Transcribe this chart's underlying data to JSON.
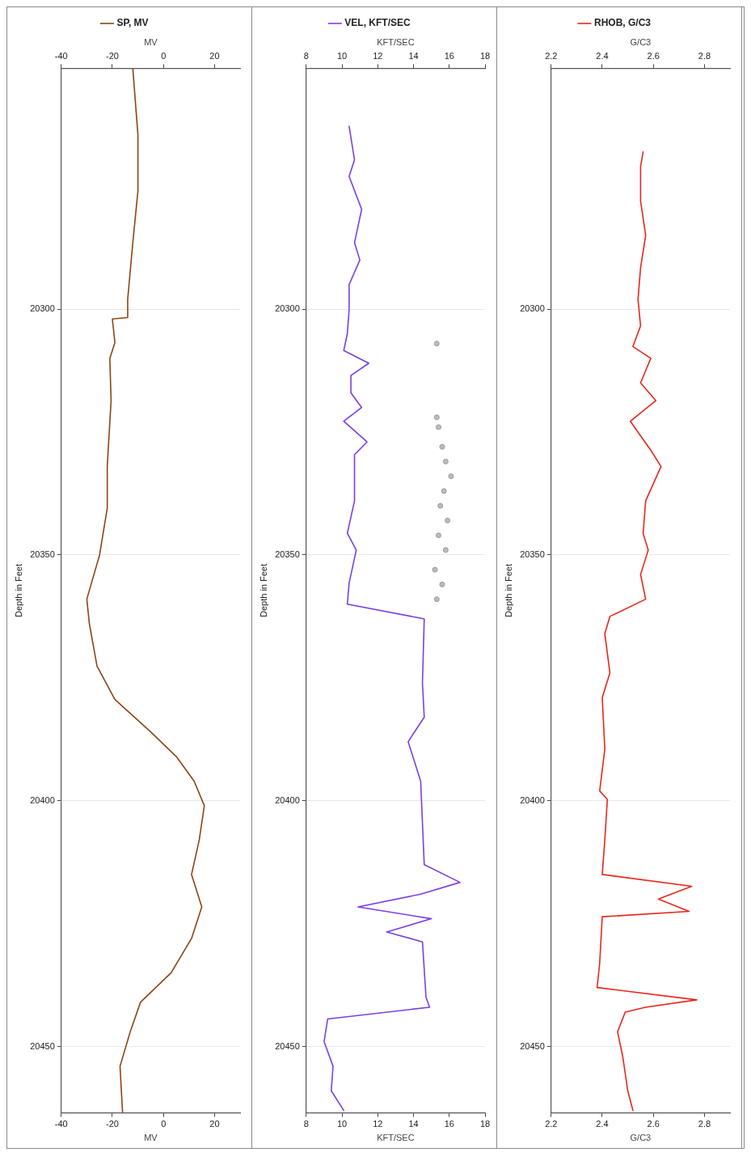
{
  "chart_data": [
    {
      "type": "line",
      "xlabel": "MV",
      "x2label": "MV",
      "ylabel": "Depth in Feet",
      "xlim": [
        -40,
        30
      ],
      "xticks": [
        -40,
        -20,
        0,
        20
      ],
      "x2lim": [
        -40,
        30
      ],
      "x2ticks": [
        -40,
        -20,
        0,
        20
      ],
      "ylim": [
        20463.5,
        20251
      ],
      "yticks": [
        20300,
        20350,
        20400,
        20450
      ],
      "grid": "y",
      "legend": "top",
      "marker": "none",
      "series": [
        {
          "name": "SP, MV",
          "color": "#8b4513",
          "x": [
            -12,
            -10,
            -10,
            -12,
            -14,
            -14,
            -20,
            -19,
            -21,
            -20.5,
            -22,
            -22,
            -25,
            -30,
            -29,
            -26,
            -19,
            -5,
            5,
            12,
            16,
            14,
            11,
            15,
            11,
            3,
            -9,
            -13,
            -17,
            -16
          ],
          "values": [
            20251,
            20264.5,
            20276,
            20286.5,
            20298,
            20301.7,
            20302,
            20306.8,
            20310,
            20318.6,
            20332,
            20340.5,
            20350,
            20359,
            20364,
            20372.6,
            20379.4,
            20386,
            20391,
            20396,
            20401,
            20408,
            20415,
            20421.6,
            20428,
            20435,
            20441,
            20447,
            20454,
            20463.5
          ]
        }
      ]
    },
    {
      "type": "line",
      "xlabel": "KFT/SEC",
      "x2label": "KFT/SEC",
      "ylabel": "Depth in Feet",
      "xlim": [
        8,
        18
      ],
      "xticks": [
        8,
        10,
        12,
        14,
        16,
        18
      ],
      "x2lim": [
        8,
        18
      ],
      "x2ticks": [
        8,
        10,
        12,
        14,
        16,
        18
      ],
      "ylim": [
        20463.5,
        20251
      ],
      "yticks": [
        20300,
        20350,
        20400,
        20450
      ],
      "grid": "y",
      "legend": "top",
      "marker": "none",
      "series": [
        {
          "name": "VEL, KFT/SEC",
          "color": "#7b3fe4",
          "x": [
            10.4,
            10.7,
            10.4,
            11.1,
            10.7,
            11.0,
            10.4,
            10.4,
            10.3,
            10.1,
            11.5,
            10.5,
            10.5,
            11.1,
            10.1,
            11.4,
            10.7,
            10.7,
            10.3,
            10.8,
            10.4,
            10.3,
            14.6,
            14.5,
            14.6,
            13.7,
            14.4,
            14.6,
            16.6,
            14.4,
            10.9,
            15.0,
            12.5,
            14.5,
            14.7,
            14.9,
            9.2,
            9.0,
            9.5,
            9.4,
            10.1
          ],
          "values": [
            20262.8,
            20269.6,
            20273,
            20279.7,
            20286.5,
            20290,
            20295,
            20300,
            20305,
            20308.4,
            20311,
            20313.5,
            20317,
            20320,
            20322.8,
            20327,
            20329.6,
            20339,
            20345.6,
            20349,
            20355.7,
            20360,
            20363,
            20376,
            20383,
            20388,
            20396,
            20413,
            20416.6,
            20419,
            20421.6,
            20424,
            20426.7,
            20428.7,
            20440,
            20442,
            20444.4,
            20449,
            20454,
            20459,
            20463
          ]
        },
        {
          "type": "scatter",
          "marker": "circle",
          "color": "#9a9a9a",
          "x": [
            15.3,
            15.3,
            15.4,
            15.6,
            15.8,
            16.1,
            15.7,
            15.5,
            15.9,
            15.4,
            15.8,
            15.2,
            15.6,
            15.3
          ],
          "values": [
            20307,
            20322,
            20324,
            20328,
            20331,
            20334,
            20337,
            20340,
            20343,
            20346,
            20349,
            20353,
            20356,
            20359
          ]
        }
      ]
    },
    {
      "type": "line",
      "xlabel": "G/C3",
      "x2label": "G/C3",
      "ylabel": "Depth in Feet",
      "xlim": [
        2.2,
        2.9
      ],
      "xticks": [
        2.2,
        2.4,
        2.6,
        2.8
      ],
      "x2lim": [
        2.2,
        2.9
      ],
      "x2ticks": [
        2.2,
        2.4,
        2.6,
        2.8
      ],
      "ylim": [
        20463.5,
        20251
      ],
      "yticks": [
        20300,
        20350,
        20400,
        20450
      ],
      "grid": "y",
      "legend": "top",
      "marker": "none",
      "series": [
        {
          "name": "RHOB, G/C3",
          "color": "#e8261c",
          "x": [
            2.56,
            2.55,
            2.55,
            2.57,
            2.55,
            2.54,
            2.55,
            2.52,
            2.59,
            2.55,
            2.61,
            2.51,
            2.59,
            2.63,
            2.57,
            2.56,
            2.58,
            2.55,
            2.57,
            2.43,
            2.41,
            2.43,
            2.4,
            2.41,
            2.39,
            2.42,
            2.41,
            2.4,
            2.75,
            2.62,
            2.74,
            2.4,
            2.39,
            2.38,
            2.77,
            2.57,
            2.49,
            2.46,
            2.48,
            2.5,
            2.52
          ],
          "values": [
            20268,
            20271,
            20278,
            20285,
            20291.6,
            20298,
            20303.4,
            20307.6,
            20310,
            20315,
            20318.6,
            20322.8,
            20328.7,
            20332,
            20339,
            20345.6,
            20349,
            20354,
            20359,
            20362.5,
            20366,
            20374,
            20379,
            20389.5,
            20398,
            20399.7,
            20408,
            20415,
            20417.4,
            20420,
            20422.5,
            20423.6,
            20433,
            20438,
            20440.5,
            20442,
            20443,
            20447,
            20452,
            20459,
            20463
          ]
        }
      ]
    }
  ]
}
